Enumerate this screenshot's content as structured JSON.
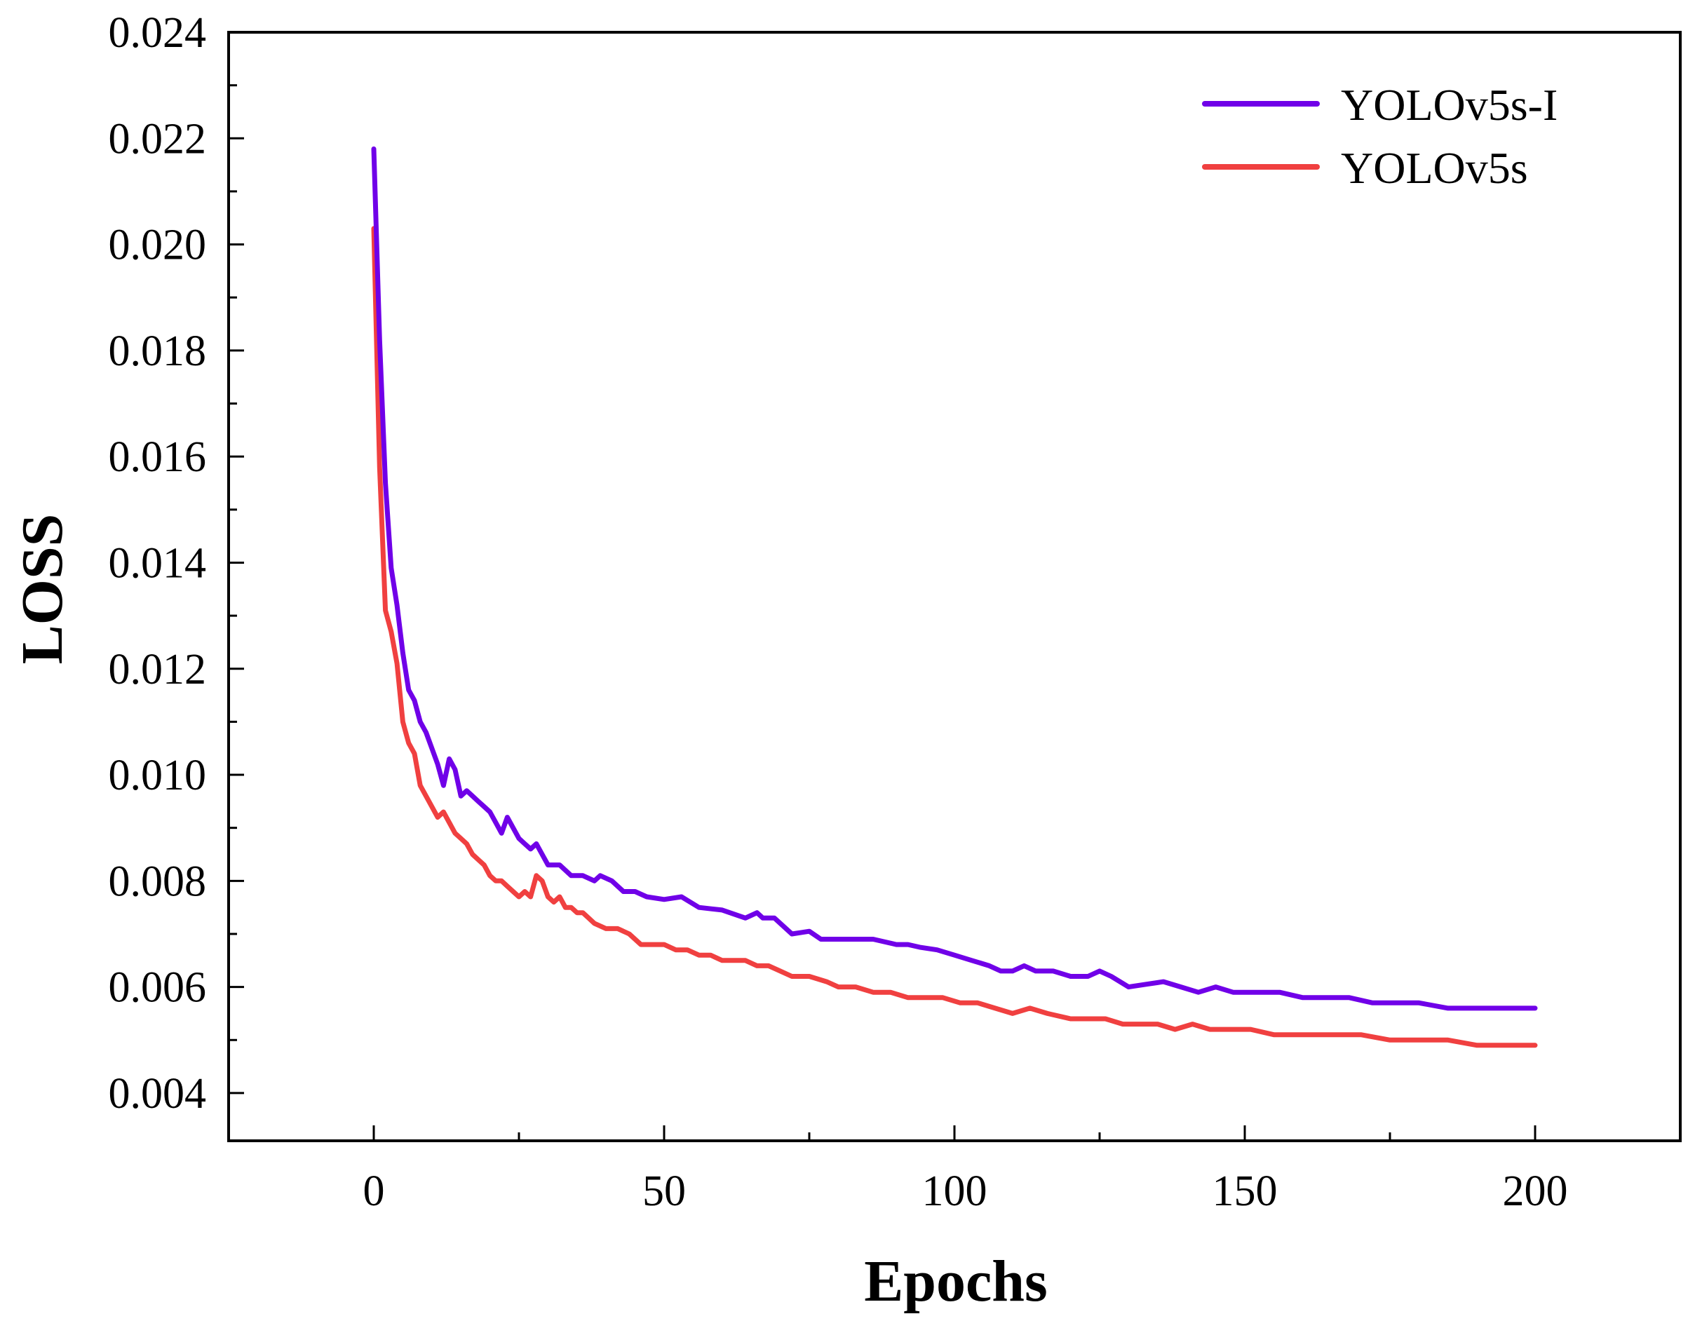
{
  "chart_data": {
    "type": "line",
    "title": "",
    "xlabel": "Epochs",
    "ylabel": "LOSS",
    "xlim": [
      -25,
      225
    ],
    "ylim": [
      0.0031,
      0.024
    ],
    "x_ticks": [
      0,
      50,
      100,
      150,
      200
    ],
    "x_tick_labels": [
      "0",
      "50",
      "100",
      "150",
      "200"
    ],
    "y_ticks": [
      0.004,
      0.006,
      0.008,
      0.01,
      0.012,
      0.014,
      0.016,
      0.018,
      0.02,
      0.022,
      0.024
    ],
    "y_tick_labels": [
      "0.004",
      "0.006",
      "0.008",
      "0.010",
      "0.012",
      "0.014",
      "0.016",
      "0.018",
      "0.020",
      "0.022",
      "0.024"
    ],
    "grid": false,
    "legend_position": "top-right",
    "series": [
      {
        "name": "YOLOv5s-I",
        "color": "#7000E8",
        "points": [
          [
            0,
            0.0218
          ],
          [
            1,
            0.0182
          ],
          [
            2,
            0.0155
          ],
          [
            3,
            0.0139
          ],
          [
            4,
            0.0132
          ],
          [
            5,
            0.0123
          ],
          [
            6,
            0.0116
          ],
          [
            7,
            0.0114
          ],
          [
            8,
            0.011
          ],
          [
            9,
            0.0108
          ],
          [
            10,
            0.0105
          ],
          [
            11,
            0.0102
          ],
          [
            12,
            0.0098
          ],
          [
            13,
            0.0103
          ],
          [
            14,
            0.0101
          ],
          [
            15,
            0.0096
          ],
          [
            16,
            0.0097
          ],
          [
            17,
            0.0096
          ],
          [
            18,
            0.0095
          ],
          [
            19,
            0.0094
          ],
          [
            20,
            0.0093
          ],
          [
            21,
            0.0091
          ],
          [
            22,
            0.0089
          ],
          [
            23,
            0.0092
          ],
          [
            24,
            0.009
          ],
          [
            25,
            0.0088
          ],
          [
            26,
            0.0087
          ],
          [
            27,
            0.0086
          ],
          [
            28,
            0.0087
          ],
          [
            29,
            0.0085
          ],
          [
            30,
            0.0083
          ],
          [
            32,
            0.0083
          ],
          [
            34,
            0.0081
          ],
          [
            36,
            0.0081
          ],
          [
            38,
            0.008
          ],
          [
            39,
            0.0081
          ],
          [
            41,
            0.008
          ],
          [
            43,
            0.0078
          ],
          [
            45,
            0.0078
          ],
          [
            47,
            0.0077
          ],
          [
            50,
            0.00765
          ],
          [
            53,
            0.0077
          ],
          [
            56,
            0.0075
          ],
          [
            60,
            0.00745
          ],
          [
            64,
            0.0073
          ],
          [
            66,
            0.0074
          ],
          [
            67,
            0.0073
          ],
          [
            69,
            0.0073
          ],
          [
            72,
            0.007
          ],
          [
            75,
            0.00705
          ],
          [
            77,
            0.0069
          ],
          [
            80,
            0.0069
          ],
          [
            83,
            0.0069
          ],
          [
            86,
            0.0069
          ],
          [
            90,
            0.0068
          ],
          [
            92,
            0.0068
          ],
          [
            94,
            0.00675
          ],
          [
            97,
            0.0067
          ],
          [
            100,
            0.0066
          ],
          [
            103,
            0.0065
          ],
          [
            106,
            0.0064
          ],
          [
            108,
            0.0063
          ],
          [
            110,
            0.0063
          ],
          [
            112,
            0.0064
          ],
          [
            114,
            0.0063
          ],
          [
            117,
            0.0063
          ],
          [
            120,
            0.0062
          ],
          [
            123,
            0.0062
          ],
          [
            125,
            0.0063
          ],
          [
            127,
            0.0062
          ],
          [
            130,
            0.006
          ],
          [
            133,
            0.00605
          ],
          [
            136,
            0.0061
          ],
          [
            139,
            0.006
          ],
          [
            142,
            0.0059
          ],
          [
            145,
            0.006
          ],
          [
            148,
            0.0059
          ],
          [
            152,
            0.0059
          ],
          [
            156,
            0.0059
          ],
          [
            160,
            0.0058
          ],
          [
            164,
            0.0058
          ],
          [
            168,
            0.0058
          ],
          [
            172,
            0.0057
          ],
          [
            176,
            0.0057
          ],
          [
            180,
            0.0057
          ],
          [
            185,
            0.0056
          ],
          [
            190,
            0.0056
          ],
          [
            195,
            0.0056
          ],
          [
            200,
            0.0056
          ]
        ]
      },
      {
        "name": "YOLOv5s",
        "color": "#F04040",
        "points": [
          [
            0,
            0.0203
          ],
          [
            1,
            0.0158
          ],
          [
            2,
            0.0131
          ],
          [
            3,
            0.0127
          ],
          [
            4,
            0.0121
          ],
          [
            5,
            0.011
          ],
          [
            6,
            0.0106
          ],
          [
            7,
            0.0104
          ],
          [
            8,
            0.0098
          ],
          [
            9,
            0.0096
          ],
          [
            10,
            0.0094
          ],
          [
            11,
            0.0092
          ],
          [
            12,
            0.0093
          ],
          [
            13,
            0.0091
          ],
          [
            14,
            0.0089
          ],
          [
            15,
            0.0088
          ],
          [
            16,
            0.0087
          ],
          [
            17,
            0.0085
          ],
          [
            18,
            0.0084
          ],
          [
            19,
            0.0083
          ],
          [
            20,
            0.0081
          ],
          [
            21,
            0.008
          ],
          [
            22,
            0.008
          ],
          [
            23,
            0.0079
          ],
          [
            24,
            0.0078
          ],
          [
            25,
            0.0077
          ],
          [
            26,
            0.0078
          ],
          [
            27,
            0.0077
          ],
          [
            28,
            0.0081
          ],
          [
            29,
            0.008
          ],
          [
            30,
            0.0077
          ],
          [
            31,
            0.0076
          ],
          [
            32,
            0.0077
          ],
          [
            33,
            0.0075
          ],
          [
            34,
            0.0075
          ],
          [
            35,
            0.0074
          ],
          [
            36,
            0.0074
          ],
          [
            37,
            0.0073
          ],
          [
            38,
            0.0072
          ],
          [
            40,
            0.0071
          ],
          [
            42,
            0.0071
          ],
          [
            44,
            0.007
          ],
          [
            46,
            0.0068
          ],
          [
            48,
            0.0068
          ],
          [
            50,
            0.0068
          ],
          [
            52,
            0.0067
          ],
          [
            54,
            0.0067
          ],
          [
            56,
            0.0066
          ],
          [
            58,
            0.0066
          ],
          [
            60,
            0.0065
          ],
          [
            62,
            0.0065
          ],
          [
            64,
            0.0065
          ],
          [
            66,
            0.0064
          ],
          [
            68,
            0.0064
          ],
          [
            70,
            0.0063
          ],
          [
            72,
            0.0062
          ],
          [
            75,
            0.0062
          ],
          [
            78,
            0.0061
          ],
          [
            80,
            0.006
          ],
          [
            83,
            0.006
          ],
          [
            86,
            0.0059
          ],
          [
            89,
            0.0059
          ],
          [
            92,
            0.0058
          ],
          [
            95,
            0.0058
          ],
          [
            98,
            0.0058
          ],
          [
            101,
            0.0057
          ],
          [
            104,
            0.0057
          ],
          [
            107,
            0.0056
          ],
          [
            110,
            0.0055
          ],
          [
            113,
            0.0056
          ],
          [
            116,
            0.0055
          ],
          [
            120,
            0.0054
          ],
          [
            123,
            0.0054
          ],
          [
            126,
            0.0054
          ],
          [
            129,
            0.0053
          ],
          [
            132,
            0.0053
          ],
          [
            135,
            0.0053
          ],
          [
            138,
            0.0052
          ],
          [
            141,
            0.0053
          ],
          [
            144,
            0.0052
          ],
          [
            147,
            0.0052
          ],
          [
            151,
            0.0052
          ],
          [
            155,
            0.0051
          ],
          [
            160,
            0.0051
          ],
          [
            165,
            0.0051
          ],
          [
            170,
            0.0051
          ],
          [
            175,
            0.005
          ],
          [
            180,
            0.005
          ],
          [
            185,
            0.005
          ],
          [
            190,
            0.0049
          ],
          [
            195,
            0.0049
          ],
          [
            198,
            0.0049
          ],
          [
            200,
            0.0049
          ]
        ]
      }
    ]
  }
}
